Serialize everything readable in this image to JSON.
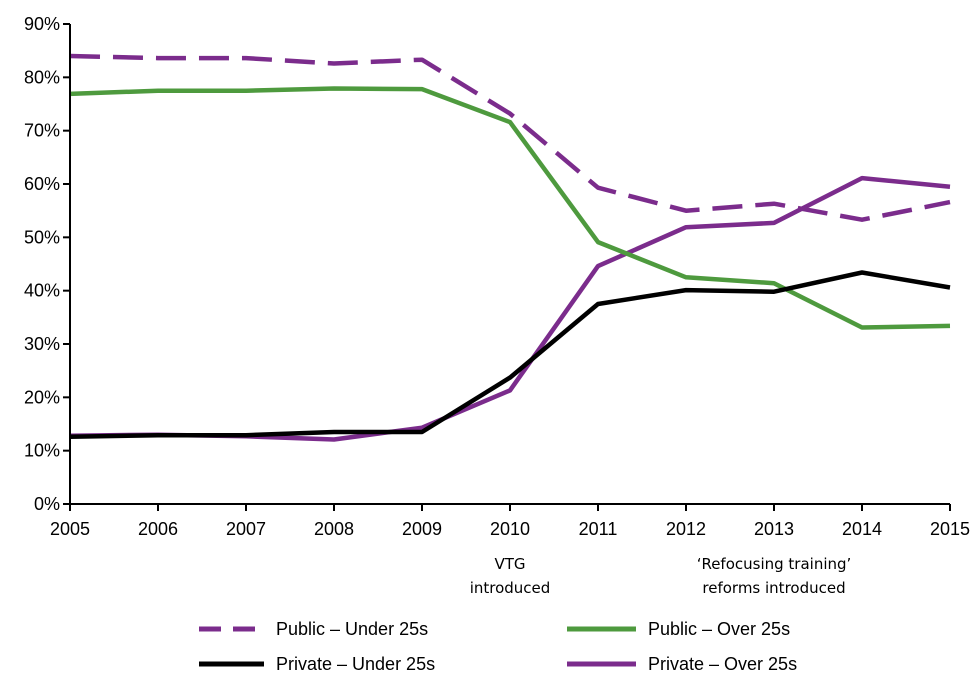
{
  "chart_data": {
    "type": "line",
    "x": [
      2005,
      2006,
      2007,
      2008,
      2009,
      2010,
      2011,
      2012,
      2013,
      2014,
      2015
    ],
    "x_tick_labels": [
      "2005",
      "2006",
      "2007",
      "2008",
      "2009",
      "2010",
      "2011",
      "2012",
      "2013",
      "2014",
      "2015"
    ],
    "y_tick_labels": [
      "0%",
      "10%",
      "20%",
      "30%",
      "40%",
      "50%",
      "60%",
      "70%",
      "80%",
      "90%"
    ],
    "ylim": [
      0,
      90
    ],
    "xlim": [
      2005,
      2015
    ],
    "grid": false,
    "legend_position": "bottom",
    "series": [
      {
        "name": "Public – Under 25s",
        "color": "#7B2C8C",
        "dash": "dashed",
        "values": [
          84,
          83.6,
          83.6,
          82.6,
          83.3,
          73.2,
          59.3,
          55,
          56.3,
          53.3,
          56.6
        ]
      },
      {
        "name": "Public – Over 25s",
        "color": "#4E9A3E",
        "dash": "solid",
        "values": [
          76.9,
          77.5,
          77.5,
          77.9,
          77.8,
          71.6,
          49.1,
          42.5,
          41.4,
          33.1,
          33.4
        ]
      },
      {
        "name": "Private – Under 25s",
        "color": "#000000",
        "dash": "solid",
        "values": [
          12.6,
          12.9,
          12.9,
          13.5,
          13.5,
          23.7,
          37.5,
          40.1,
          39.8,
          43.4,
          40.6
        ]
      },
      {
        "name": "Private – Over 25s",
        "color": "#7B2C8C",
        "dash": "solid",
        "values": [
          12.8,
          13,
          12.7,
          12.1,
          14.3,
          21.3,
          44.6,
          51.9,
          52.7,
          61.1,
          59.5
        ]
      }
    ],
    "annotations": [
      {
        "x": 2010,
        "lines": [
          "VTG",
          "introduced"
        ]
      },
      {
        "x": 2013,
        "lines": [
          "‘Refocusing training’",
          "reforms introduced"
        ]
      }
    ]
  }
}
